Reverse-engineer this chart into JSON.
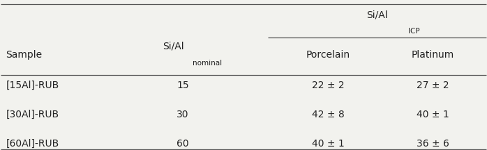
{
  "col0_header": "Sample",
  "col1_header_main": "Si/Al",
  "col1_header_sub": "nominal",
  "col23_header_main": "Si/Al",
  "col23_header_sub": "ICP",
  "col2_header": "Porcelain",
  "col3_header": "Platinum",
  "rows": [
    {
      "sample": "[15Al]-RUB",
      "nominal": "15",
      "porcelain": "22 ± 2",
      "platinum": "27 ± 2"
    },
    {
      "sample": "[30Al]-RUB",
      "nominal": "30",
      "porcelain": "42 ± 8",
      "platinum": "40 ± 1"
    },
    {
      "sample": "[60Al]-RUB",
      "nominal": "60",
      "porcelain": "40 ± 1",
      "platinum": "36 ± 6"
    }
  ],
  "background_color": "#f2f2ee",
  "line_color": "#555555",
  "text_color": "#222222",
  "font_size": 10
}
